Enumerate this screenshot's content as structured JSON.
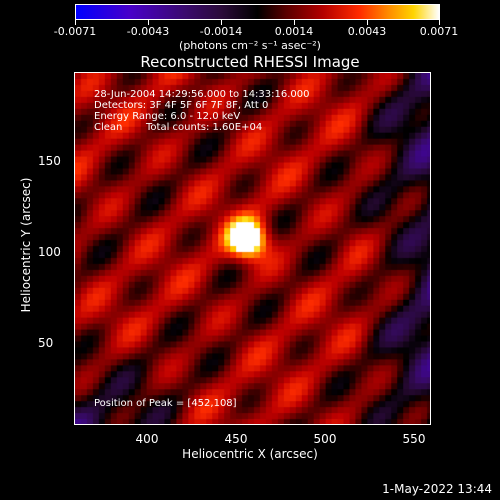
{
  "colorbar": {
    "ticks": [
      "-0.0071",
      "-0.0043",
      "-0.0014",
      "0.0014",
      "0.0043",
      "0.0071"
    ],
    "units": "(photons cm⁻² s⁻¹ asec⁻²)",
    "range": [
      -0.0071,
      0.0071
    ]
  },
  "title": "Reconstructed RHESSI Image",
  "info": {
    "time_range": "28-Jun-2004 14:29:56.000 to 14:33:16.000",
    "detectors": "Detectors: 3F 4F 5F 6F 7F 8F, Att 0",
    "energy": "Energy Range: 6.0 - 12.0 keV",
    "method": "Clean",
    "counts": "Total counts: 1.60E+04",
    "peak": "Position of Peak = [452,108]"
  },
  "axes": {
    "xlabel": "Heliocentric X (arcsec)",
    "ylabel": "Heliocentric Y (arcsec)",
    "xticks": [
      "400",
      "450",
      "500",
      "550"
    ],
    "yticks": [
      "50",
      "100",
      "150"
    ],
    "xlim": [
      360,
      552
    ],
    "ylim": [
      3,
      200
    ]
  },
  "peak": {
    "x": 452,
    "y": 108
  },
  "timestamp": "1-May-2022 13:44"
}
